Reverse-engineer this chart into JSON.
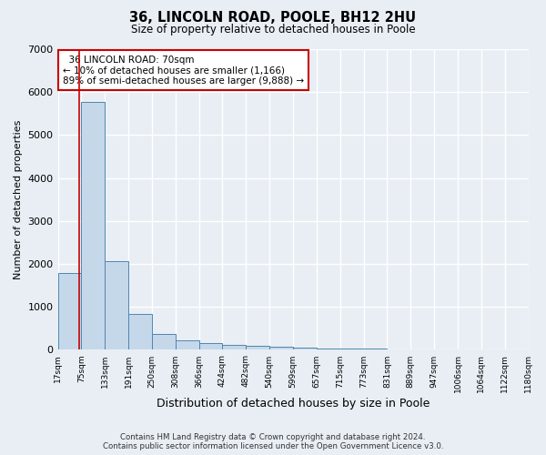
{
  "title": "36, LINCOLN ROAD, POOLE, BH12 2HU",
  "subtitle": "Size of property relative to detached houses in Poole",
  "xlabel": "Distribution of detached houses by size in Poole",
  "ylabel": "Number of detached properties",
  "footer_line1": "Contains HM Land Registry data © Crown copyright and database right 2024.",
  "footer_line2": "Contains public sector information licensed under the Open Government Licence v3.0.",
  "annotation_title": "36 LINCOLN ROAD: 70sqm",
  "annotation_line2": "← 10% of detached houses are smaller (1,166)",
  "annotation_line3": "89% of semi-detached houses are larger (9,888) →",
  "property_size": 70,
  "bar_centers": [
    0,
    1,
    2,
    3,
    4,
    5,
    6,
    7,
    8,
    9,
    10,
    11,
    12,
    13,
    14,
    15,
    16,
    17,
    18,
    19
  ],
  "bar_heights": [
    1780,
    5780,
    2060,
    830,
    380,
    225,
    160,
    110,
    90,
    65,
    50,
    40,
    35,
    25,
    20,
    15,
    12,
    10,
    8,
    6
  ],
  "bar_color": "#c5d8ea",
  "bar_edge_color": "#4f86b0",
  "property_line_color": "#cc0000",
  "annotation_box_color": "#cc0000",
  "background_color": "#e8eef4",
  "plot_bg_color": "#e8eef4",
  "grid_color": "#ffffff",
  "ylim": [
    0,
    7000
  ],
  "tick_labels": [
    "17sqm",
    "75sqm",
    "133sqm",
    "191sqm",
    "250sqm",
    "308sqm",
    "366sqm",
    "424sqm",
    "482sqm",
    "540sqm",
    "599sqm",
    "657sqm",
    "715sqm",
    "773sqm",
    "831sqm",
    "889sqm",
    "947sqm",
    "1006sqm",
    "1064sqm",
    "1122sqm",
    "1180sqm"
  ]
}
